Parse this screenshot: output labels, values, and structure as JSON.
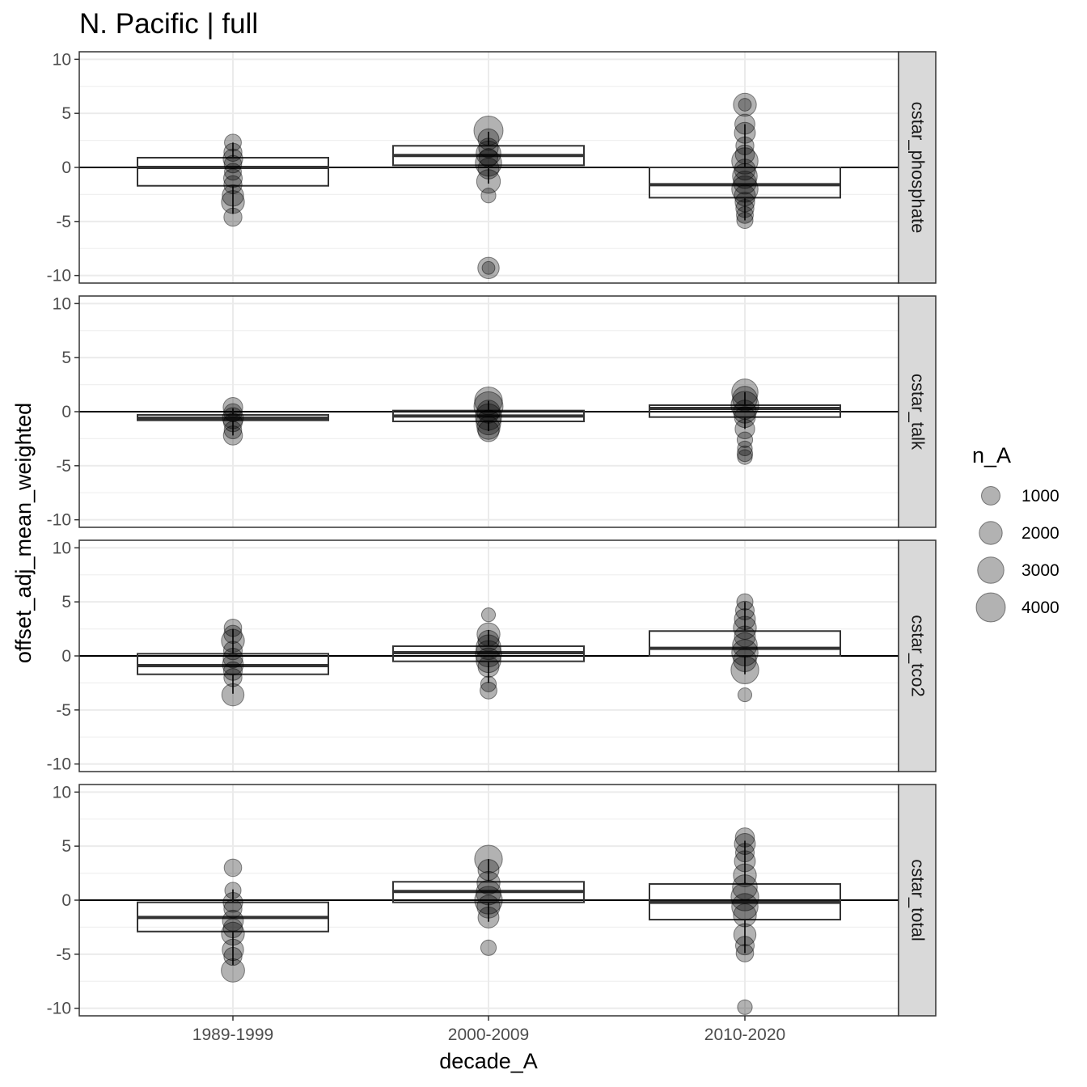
{
  "chart_data": {
    "type": "box",
    "title": "N. Pacific | full",
    "xlabel": "decade_A",
    "ylabel": "offset_adj_mean_weighted",
    "categories": [
      "1989-1999",
      "2000-2009",
      "2010-2020"
    ],
    "ylim": [
      -10.7,
      10.7
    ],
    "yticks": [
      -10,
      -5,
      0,
      5,
      10
    ],
    "ytick_labels": [
      "-10",
      "-5",
      "0",
      "5",
      "10"
    ],
    "hline": 0,
    "grid": true,
    "legend": {
      "title": "n_A",
      "placement": "right",
      "sizes": [
        1000,
        2000,
        3000,
        4000
      ],
      "labels": [
        "1000",
        "2000",
        "3000",
        "4000"
      ]
    },
    "panels": [
      {
        "name": "cstar_phosphate",
        "boxes": [
          {
            "category": "1989-1999",
            "q1": -1.7,
            "median": 0.0,
            "q3": 0.9,
            "wlow": -4.3,
            "whigh": 2.3
          },
          {
            "category": "2000-2009",
            "q1": 0.2,
            "median": 1.1,
            "q3": 2.0,
            "wlow": -1.5,
            "whigh": 3.3
          },
          {
            "category": "2010-2020",
            "q1": -2.8,
            "median": -1.6,
            "q3": 0.0,
            "wlow": -4.9,
            "whigh": 4.0
          }
        ],
        "points": [
          {
            "category": "1989-1999",
            "y": 2.3,
            "n": 700
          },
          {
            "category": "1989-1999",
            "y": 1.4,
            "n": 900
          },
          {
            "category": "1989-1999",
            "y": 0.8,
            "n": 1200
          },
          {
            "category": "1989-1999",
            "y": 0.3,
            "n": 800
          },
          {
            "category": "1989-1999",
            "y": -0.4,
            "n": 700
          },
          {
            "category": "1989-1999",
            "y": -1.0,
            "n": 1000
          },
          {
            "category": "1989-1999",
            "y": -1.6,
            "n": 900
          },
          {
            "category": "1989-1999",
            "y": -2.6,
            "n": 1600
          },
          {
            "category": "1989-1999",
            "y": -3.2,
            "n": 2000
          },
          {
            "category": "1989-1999",
            "y": -4.6,
            "n": 900
          },
          {
            "category": "2000-2009",
            "y": 3.4,
            "n": 4000
          },
          {
            "category": "2000-2009",
            "y": 2.6,
            "n": 1500
          },
          {
            "category": "2000-2009",
            "y": 1.8,
            "n": 1200
          },
          {
            "category": "2000-2009",
            "y": 1.3,
            "n": 2500
          },
          {
            "category": "2000-2009",
            "y": 0.9,
            "n": 1000
          },
          {
            "category": "2000-2009",
            "y": 0.4,
            "n": 3000
          },
          {
            "category": "2000-2009",
            "y": -0.1,
            "n": 1500
          },
          {
            "category": "2000-2009",
            "y": -1.3,
            "n": 2200
          },
          {
            "category": "2000-2009",
            "y": -2.6,
            "n": 400
          },
          {
            "category": "2000-2009",
            "y": -9.3,
            "n": 1600
          },
          {
            "category": "2000-2009",
            "y": -9.3,
            "n": 200
          },
          {
            "category": "2010-2020",
            "y": 5.8,
            "n": 2000
          },
          {
            "category": "2010-2020",
            "y": 5.8,
            "n": 200
          },
          {
            "category": "2010-2020",
            "y": 4.0,
            "n": 1300
          },
          {
            "category": "2010-2020",
            "y": 3.2,
            "n": 1500
          },
          {
            "category": "2010-2020",
            "y": 2.0,
            "n": 900
          },
          {
            "category": "2010-2020",
            "y": 1.2,
            "n": 1100
          },
          {
            "category": "2010-2020",
            "y": 0.6,
            "n": 3000
          },
          {
            "category": "2010-2020",
            "y": -0.2,
            "n": 1500
          },
          {
            "category": "2010-2020",
            "y": -0.8,
            "n": 2500
          },
          {
            "category": "2010-2020",
            "y": -1.4,
            "n": 2000
          },
          {
            "category": "2010-2020",
            "y": -2.0,
            "n": 3000
          },
          {
            "category": "2010-2020",
            "y": -2.6,
            "n": 1500
          },
          {
            "category": "2010-2020",
            "y": -3.2,
            "n": 1200
          },
          {
            "category": "2010-2020",
            "y": -3.8,
            "n": 900
          },
          {
            "category": "2010-2020",
            "y": -4.4,
            "n": 700
          },
          {
            "category": "2010-2020",
            "y": -4.9,
            "n": 600
          }
        ]
      },
      {
        "name": "cstar_talk",
        "boxes": [
          {
            "category": "1989-1999",
            "q1": -0.8,
            "median": -0.6,
            "q3": -0.3,
            "wlow": -2.2,
            "whigh": 0.3
          },
          {
            "category": "2000-2009",
            "q1": -0.9,
            "median": -0.4,
            "q3": 0.1,
            "wlow": -1.8,
            "whigh": 1.0
          },
          {
            "category": "2010-2020",
            "q1": -0.5,
            "median": 0.3,
            "q3": 0.6,
            "wlow": -1.6,
            "whigh": 1.8
          }
        ],
        "points": [
          {
            "category": "1989-1999",
            "y": 0.4,
            "n": 1200
          },
          {
            "category": "1989-1999",
            "y": -0.1,
            "n": 900
          },
          {
            "category": "1989-1999",
            "y": -0.6,
            "n": 1500
          },
          {
            "category": "1989-1999",
            "y": -1.0,
            "n": 1000
          },
          {
            "category": "1989-1999",
            "y": -1.7,
            "n": 800
          },
          {
            "category": "1989-1999",
            "y": -2.2,
            "n": 1100
          },
          {
            "category": "2000-2009",
            "y": 1.0,
            "n": 3500
          },
          {
            "category": "2000-2009",
            "y": 0.5,
            "n": 4000
          },
          {
            "category": "2000-2009",
            "y": 0.0,
            "n": 2000
          },
          {
            "category": "2000-2009",
            "y": -0.5,
            "n": 3000
          },
          {
            "category": "2000-2009",
            "y": -1.0,
            "n": 2500
          },
          {
            "category": "2000-2009",
            "y": -1.5,
            "n": 2000
          },
          {
            "category": "2000-2009",
            "y": -1.8,
            "n": 1500
          },
          {
            "category": "2010-2020",
            "y": 1.8,
            "n": 3000
          },
          {
            "category": "2010-2020",
            "y": 1.2,
            "n": 2500
          },
          {
            "category": "2010-2020",
            "y": 0.6,
            "n": 3500
          },
          {
            "category": "2010-2020",
            "y": 0.0,
            "n": 2000
          },
          {
            "category": "2010-2020",
            "y": -0.5,
            "n": 1500
          },
          {
            "category": "2010-2020",
            "y": -1.6,
            "n": 1200
          },
          {
            "category": "2010-2020",
            "y": -2.6,
            "n": 500
          },
          {
            "category": "2010-2020",
            "y": -3.4,
            "n": 400
          },
          {
            "category": "2010-2020",
            "y": -3.9,
            "n": 500
          },
          {
            "category": "2010-2020",
            "y": -4.2,
            "n": 400
          }
        ]
      },
      {
        "name": "cstar_tco2",
        "boxes": [
          {
            "category": "1989-1999",
            "q1": -1.7,
            "median": -0.9,
            "q3": 0.2,
            "wlow": -3.5,
            "whigh": 2.5
          },
          {
            "category": "2000-2009",
            "q1": -0.5,
            "median": 0.3,
            "q3": 0.9,
            "wlow": -2.5,
            "whigh": 2.4
          },
          {
            "category": "2010-2020",
            "q1": 0.0,
            "median": 0.7,
            "q3": 2.3,
            "wlow": -1.7,
            "whigh": 5.0
          }
        ],
        "points": [
          {
            "category": "1989-1999",
            "y": 2.6,
            "n": 800
          },
          {
            "category": "1989-1999",
            "y": 2.0,
            "n": 900
          },
          {
            "category": "1989-1999",
            "y": 1.4,
            "n": 2000
          },
          {
            "category": "1989-1999",
            "y": 0.5,
            "n": 1000
          },
          {
            "category": "1989-1999",
            "y": -0.2,
            "n": 1200
          },
          {
            "category": "1989-1999",
            "y": -0.8,
            "n": 1500
          },
          {
            "category": "1989-1999",
            "y": -1.4,
            "n": 1000
          },
          {
            "category": "1989-1999",
            "y": -2.0,
            "n": 900
          },
          {
            "category": "1989-1999",
            "y": -3.6,
            "n": 1800
          },
          {
            "category": "2000-2009",
            "y": 3.8,
            "n": 300
          },
          {
            "category": "2000-2009",
            "y": 2.0,
            "n": 2000
          },
          {
            "category": "2000-2009",
            "y": 1.4,
            "n": 1500
          },
          {
            "category": "2000-2009",
            "y": 0.8,
            "n": 2500
          },
          {
            "category": "2000-2009",
            "y": 0.2,
            "n": 3000
          },
          {
            "category": "2000-2009",
            "y": -0.4,
            "n": 2500
          },
          {
            "category": "2000-2009",
            "y": -1.0,
            "n": 1500
          },
          {
            "category": "2000-2009",
            "y": -2.6,
            "n": 500
          },
          {
            "category": "2000-2009",
            "y": -3.2,
            "n": 700
          },
          {
            "category": "2010-2020",
            "y": 5.0,
            "n": 600
          },
          {
            "category": "2010-2020",
            "y": 4.2,
            "n": 1000
          },
          {
            "category": "2010-2020",
            "y": 3.4,
            "n": 1500
          },
          {
            "category": "2010-2020",
            "y": 2.6,
            "n": 2000
          },
          {
            "category": "2010-2020",
            "y": 1.8,
            "n": 1500
          },
          {
            "category": "2010-2020",
            "y": 1.0,
            "n": 2500
          },
          {
            "category": "2010-2020",
            "y": 0.3,
            "n": 3000
          },
          {
            "category": "2010-2020",
            "y": -0.4,
            "n": 2000
          },
          {
            "category": "2010-2020",
            "y": -1.3,
            "n": 3500
          },
          {
            "category": "2010-2020",
            "y": -3.6,
            "n": 300
          }
        ]
      },
      {
        "name": "cstar_total",
        "boxes": [
          {
            "category": "1989-1999",
            "q1": -2.9,
            "median": -1.6,
            "q3": -0.2,
            "wlow": -6.0,
            "whigh": 1.0
          },
          {
            "category": "2000-2009",
            "q1": -0.2,
            "median": 0.8,
            "q3": 1.7,
            "wlow": -2.0,
            "whigh": 3.8
          },
          {
            "category": "2010-2020",
            "q1": -1.8,
            "median": -0.2,
            "q3": 1.5,
            "wlow": -4.9,
            "whigh": 5.5
          }
        ],
        "points": [
          {
            "category": "1989-1999",
            "y": 3.0,
            "n": 800
          },
          {
            "category": "1989-1999",
            "y": 0.9,
            "n": 600
          },
          {
            "category": "1989-1999",
            "y": -0.2,
            "n": 1200
          },
          {
            "category": "1989-1999",
            "y": -0.8,
            "n": 900
          },
          {
            "category": "1989-1999",
            "y": -1.9,
            "n": 1500
          },
          {
            "category": "1989-1999",
            "y": -2.6,
            "n": 1100
          },
          {
            "category": "1989-1999",
            "y": -3.1,
            "n": 2000
          },
          {
            "category": "1989-1999",
            "y": -4.6,
            "n": 1600
          },
          {
            "category": "1989-1999",
            "y": -5.2,
            "n": 900
          },
          {
            "category": "1989-1999",
            "y": -6.5,
            "n": 2100
          },
          {
            "category": "2000-2009",
            "y": 3.8,
            "n": 3500
          },
          {
            "category": "2000-2009",
            "y": 2.8,
            "n": 1500
          },
          {
            "category": "2000-2009",
            "y": 1.6,
            "n": 2000
          },
          {
            "category": "2000-2009",
            "y": 0.7,
            "n": 2500
          },
          {
            "category": "2000-2009",
            "y": 0.0,
            "n": 3500
          },
          {
            "category": "2000-2009",
            "y": -0.6,
            "n": 2000
          },
          {
            "category": "2000-2009",
            "y": -1.6,
            "n": 1500
          },
          {
            "category": "2000-2009",
            "y": -4.4,
            "n": 500
          },
          {
            "category": "2010-2020",
            "y": 5.8,
            "n": 1100
          },
          {
            "category": "2010-2020",
            "y": 5.2,
            "n": 1500
          },
          {
            "category": "2010-2020",
            "y": 4.4,
            "n": 1000
          },
          {
            "category": "2010-2020",
            "y": 3.6,
            "n": 1500
          },
          {
            "category": "2010-2020",
            "y": 2.3,
            "n": 2000
          },
          {
            "category": "2010-2020",
            "y": 1.2,
            "n": 2500
          },
          {
            "category": "2010-2020",
            "y": 0.3,
            "n": 3500
          },
          {
            "category": "2010-2020",
            "y": -0.6,
            "n": 3000
          },
          {
            "category": "2010-2020",
            "y": -1.4,
            "n": 2000
          },
          {
            "category": "2010-2020",
            "y": -3.2,
            "n": 1800
          },
          {
            "category": "2010-2020",
            "y": -4.2,
            "n": 1000
          },
          {
            "category": "2010-2020",
            "y": -4.9,
            "n": 800
          },
          {
            "category": "2010-2020",
            "y": -9.9,
            "n": 400
          }
        ]
      }
    ]
  }
}
